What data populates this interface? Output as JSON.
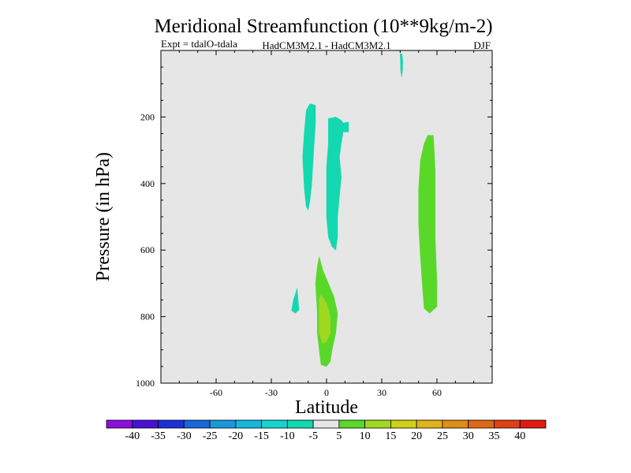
{
  "chart_data": {
    "type": "contour",
    "title": "Meridional Streamfunction (10**9kg/m-2)",
    "subtitle_left": "Expt = tdalO-tdala",
    "subtitle_center": "HadCM3M2.1 - HadCM3M2.1",
    "subtitle_right": "DJF",
    "xlabel": "Latitude",
    "ylabel": "Pressure (in hPa)",
    "xlim": [
      -90,
      90
    ],
    "ylim": [
      0,
      1000
    ],
    "y_inverted": true,
    "x_ticks": [
      -60,
      -30,
      0,
      30,
      60
    ],
    "x_tick_labels": [
      "-60",
      "-30",
      "0",
      "30",
      "60"
    ],
    "y_ticks": [
      200,
      400,
      600,
      800,
      1000
    ],
    "y_tick_labels": [
      "200",
      "400",
      "600",
      "800",
      "1000"
    ],
    "background_color": "#e6e6e6",
    "colorbar": {
      "levels": [
        -40,
        -35,
        -30,
        -25,
        -20,
        -15,
        -10,
        -5,
        5,
        10,
        15,
        20,
        25,
        30,
        35,
        40
      ],
      "labels": [
        "-40",
        "-35",
        "-30",
        "-25",
        "-20",
        "-15",
        "-10",
        "-5",
        "5",
        "10",
        "15",
        "20",
        "25",
        "30",
        "35",
        "40"
      ],
      "colors": [
        "#8a10dc",
        "#4a10d8",
        "#1a30d8",
        "#1868dc",
        "#1a98dc",
        "#14b8dc",
        "#14d4d0",
        "#14d8b0",
        "#e6e6e6",
        "#5ad82a",
        "#a0d820",
        "#d0d018",
        "#e0b418",
        "#e08c18",
        "#e06618",
        "#e04016",
        "#e01a10"
      ]
    },
    "regions": [
      {
        "name": "negative-cell-top-spike",
        "level": "-10 to -5",
        "color": "#14d8b0",
        "polygon": [
          [
            40,
            10
          ],
          [
            41,
            10
          ],
          [
            41.4,
            30
          ],
          [
            41.3,
            60
          ],
          [
            40.8,
            80
          ],
          [
            40.3,
            60
          ],
          [
            40.1,
            30
          ]
        ]
      },
      {
        "name": "negative-cell-west-upper",
        "level": "-10 to -5",
        "color": "#14d8b0",
        "polygon": [
          [
            -9,
            160
          ],
          [
            -6,
            165
          ],
          [
            -6,
            220
          ],
          [
            -7,
            300
          ],
          [
            -8,
            400
          ],
          [
            -9,
            450
          ],
          [
            -10,
            480
          ],
          [
            -11,
            470
          ],
          [
            -12,
            420
          ],
          [
            -13,
            320
          ],
          [
            -12,
            240
          ],
          [
            -11,
            180
          ]
        ]
      },
      {
        "name": "negative-cell-central",
        "level": "-10 to -5",
        "color": "#14d8b0",
        "polygon": [
          [
            1,
            205
          ],
          [
            5,
            200
          ],
          [
            8,
            210
          ],
          [
            9,
            218
          ],
          [
            12,
            215
          ],
          [
            12,
            245
          ],
          [
            9,
            245
          ],
          [
            8,
            280
          ],
          [
            7,
            320
          ],
          [
            8,
            380
          ],
          [
            7,
            440
          ],
          [
            6,
            500
          ],
          [
            6,
            560
          ],
          [
            5,
            600
          ],
          [
            3,
            590
          ],
          [
            1,
            560
          ],
          [
            0,
            500
          ],
          [
            0,
            430
          ],
          [
            0,
            350
          ],
          [
            1,
            280
          ]
        ]
      },
      {
        "name": "negative-cell-lower-west",
        "level": "-10 to -5",
        "color": "#14d8b0",
        "polygon": [
          [
            -16,
            715
          ],
          [
            -15,
            780
          ],
          [
            -17,
            790
          ],
          [
            -19,
            782
          ],
          [
            -18,
            750
          ]
        ]
      },
      {
        "name": "positive-cell-north",
        "level": "5 to 10",
        "color": "#5ad82a",
        "polygon": [
          [
            55,
            255
          ],
          [
            58,
            255
          ],
          [
            58.5,
            300
          ],
          [
            59,
            360
          ],
          [
            59,
            470
          ],
          [
            59,
            560
          ],
          [
            60,
            700
          ],
          [
            60,
            770
          ],
          [
            56,
            790
          ],
          [
            53,
            775
          ],
          [
            52,
            700
          ],
          [
            51,
            620
          ],
          [
            50,
            520
          ],
          [
            50,
            420
          ],
          [
            51,
            330
          ],
          [
            53,
            280
          ]
        ]
      },
      {
        "name": "positive-cell-lower-central",
        "level": "5 to 10",
        "color": "#5ad82a",
        "polygon": [
          [
            -4,
            620
          ],
          [
            -2,
            660
          ],
          [
            1,
            700
          ],
          [
            4,
            740
          ],
          [
            6,
            790
          ],
          [
            5,
            850
          ],
          [
            3,
            900
          ],
          [
            2,
            935
          ],
          [
            0,
            950
          ],
          [
            -3,
            945
          ],
          [
            -4,
            900
          ],
          [
            -5,
            850
          ],
          [
            -5,
            790
          ],
          [
            -6,
            700
          ],
          [
            -5,
            650
          ]
        ]
      },
      {
        "name": "positive-cell-lower-central-core",
        "level": "10 to 15",
        "color": "#a0d820",
        "polygon": [
          [
            -3,
            735
          ],
          [
            0,
            760
          ],
          [
            2,
            800
          ],
          [
            2,
            850
          ],
          [
            0,
            875
          ],
          [
            -2,
            880
          ],
          [
            -4,
            850
          ],
          [
            -4,
            790
          ],
          [
            -4,
            750
          ]
        ]
      }
    ]
  }
}
